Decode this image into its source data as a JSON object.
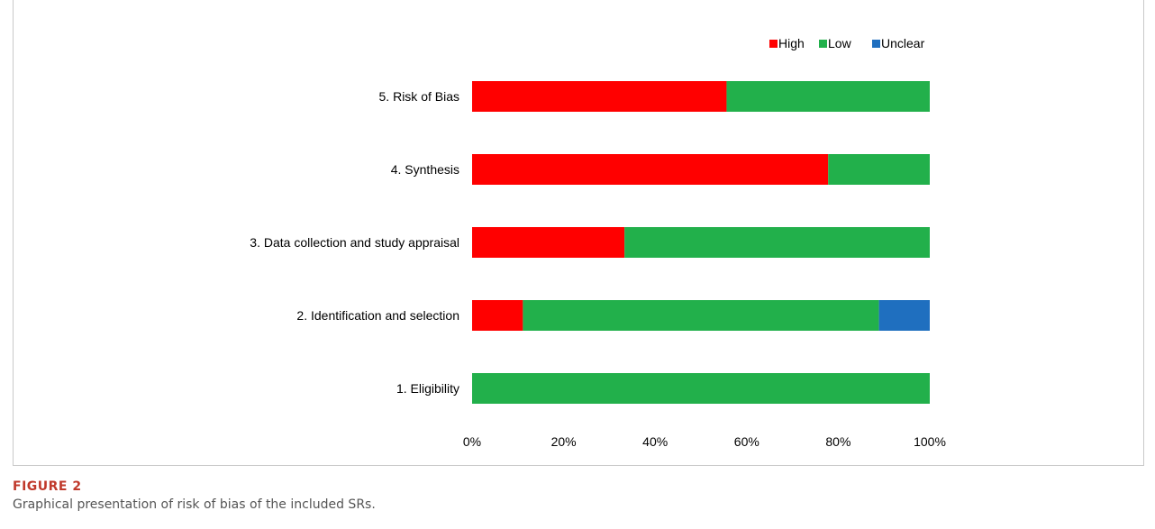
{
  "chart_data": {
    "type": "bar",
    "orientation": "horizontal",
    "stacked": "percent",
    "categories": [
      "5. Risk of Bias",
      "4. Synthesis",
      "3. Data collection and study appraisal",
      "2. Identification and selection",
      "1. Eligibility"
    ],
    "series": [
      {
        "name": "High",
        "color": "#ff0000",
        "values": [
          55.6,
          77.8,
          33.3,
          11.1,
          0
        ]
      },
      {
        "name": "Low",
        "color": "#22b04b",
        "values": [
          44.4,
          22.2,
          66.7,
          77.8,
          100
        ]
      },
      {
        "name": "Unclear",
        "color": "#1f6fbf",
        "values": [
          0,
          0,
          0,
          11.1,
          0
        ]
      }
    ],
    "xticks": [
      "0%",
      "20%",
      "40%",
      "60%",
      "80%",
      "100%"
    ],
    "xlim": [
      0,
      100
    ],
    "legend": "top-right",
    "grid": false
  },
  "caption": {
    "label": "FIGURE 2",
    "text": "Graphical presentation of risk of bias of the included SRs."
  }
}
